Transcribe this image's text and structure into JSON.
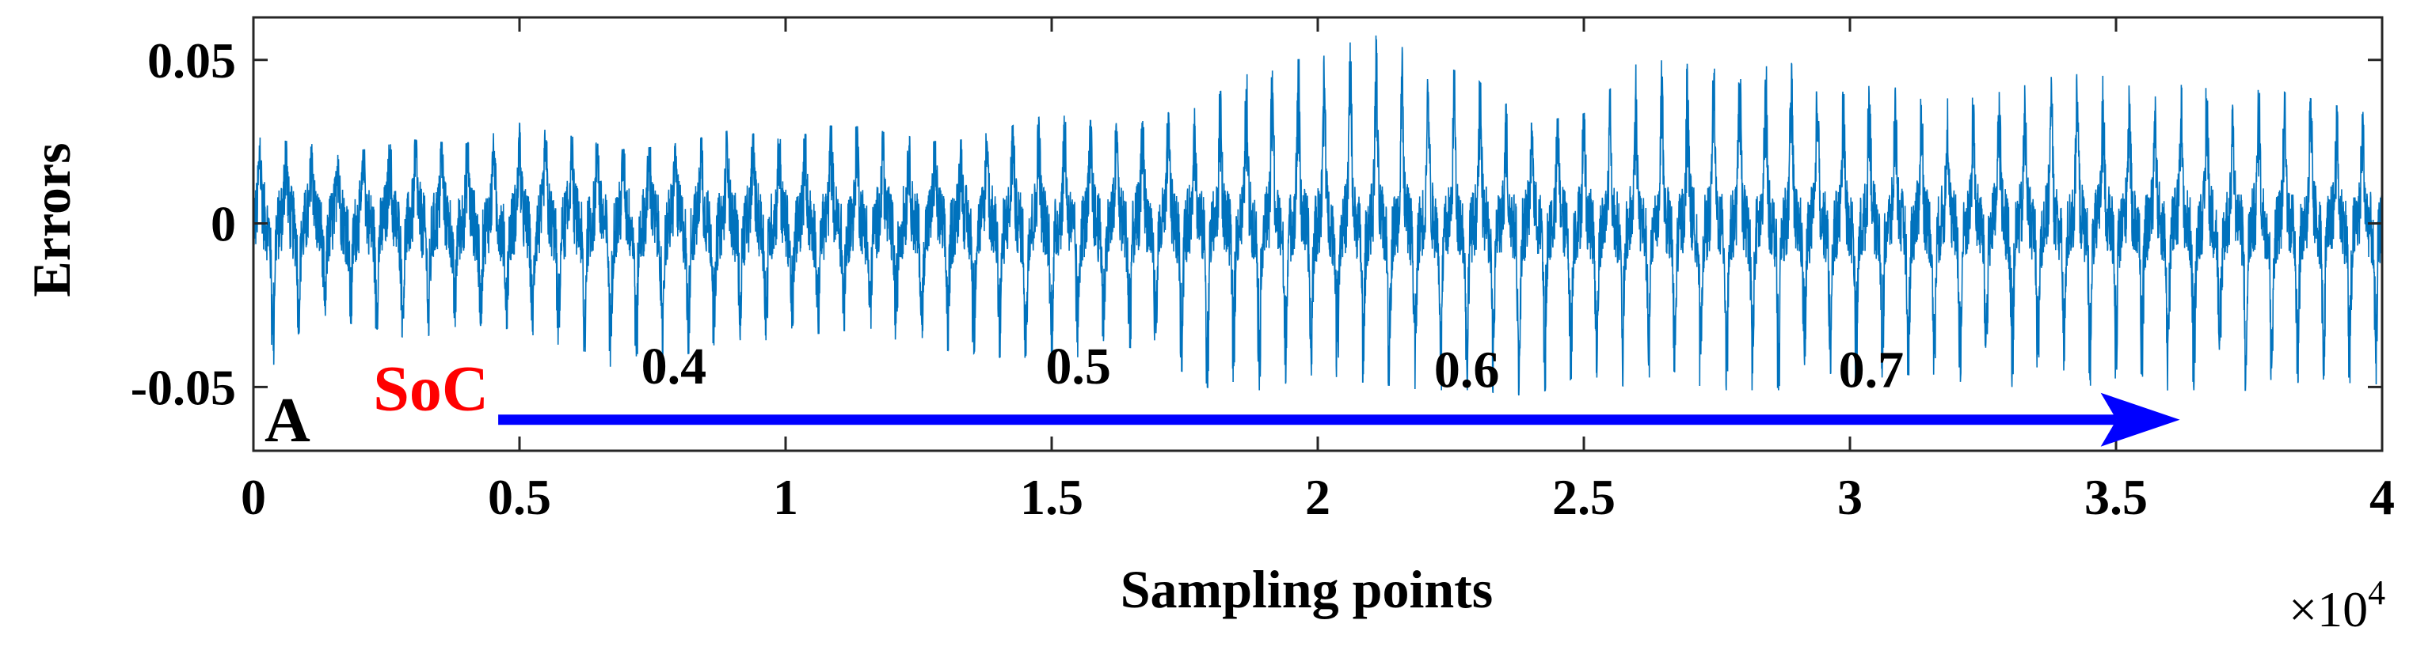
{
  "chart_data": {
    "type": "line",
    "xlabel": "Sampling points",
    "ylabel": "Errors",
    "x_multiplier_label": "×10",
    "x_multiplier_exponent": "4",
    "xlim": [
      0,
      4
    ],
    "ylim": [
      -0.0695,
      0.063
    ],
    "x_ticks": [
      0,
      0.5,
      1,
      1.5,
      2,
      2.5,
      3,
      3.5,
      4
    ],
    "x_tick_labels": [
      "0",
      "0.5",
      "1",
      "1.5",
      "2",
      "2.5",
      "3",
      "3.5",
      "4"
    ],
    "y_ticks": [
      0.05,
      0,
      -0.05
    ],
    "y_tick_labels": [
      "0.05",
      "0",
      "-0.05"
    ],
    "grid": false,
    "series": [
      {
        "color": "#0072BD",
        "x": [
          0,
          0.1,
          0.2,
          0.3,
          0.4,
          0.5,
          0.6,
          0.7,
          0.8,
          0.9,
          1.0,
          1.1,
          1.2,
          1.3,
          1.4,
          1.5,
          1.6,
          1.7,
          1.8,
          1.9,
          2.0,
          2.1,
          2.2,
          2.3,
          2.4,
          2.5,
          2.6,
          2.7,
          2.8,
          2.9,
          3.0,
          3.1,
          3.2,
          3.3,
          3.4,
          3.5,
          3.6,
          3.7,
          3.8,
          3.9,
          4.0
        ],
        "upper": [
          0.026,
          0.024,
          0.022,
          0.025,
          0.024,
          0.03,
          0.026,
          0.022,
          0.024,
          0.028,
          0.025,
          0.03,
          0.027,
          0.024,
          0.028,
          0.033,
          0.03,
          0.032,
          0.038,
          0.048,
          0.05,
          0.057,
          0.05,
          0.043,
          0.03,
          0.033,
          0.048,
          0.05,
          0.049,
          0.048,
          0.045,
          0.04,
          0.037,
          0.04,
          0.045,
          0.044,
          0.042,
          0.04,
          0.04,
          0.036,
          0.032
        ],
        "lower": [
          -0.05,
          -0.03,
          -0.03,
          -0.035,
          -0.03,
          -0.032,
          -0.038,
          -0.045,
          -0.04,
          -0.035,
          -0.035,
          -0.032,
          -0.035,
          -0.038,
          -0.04,
          -0.045,
          -0.035,
          -0.04,
          -0.05,
          -0.05,
          -0.045,
          -0.048,
          -0.05,
          -0.05,
          -0.052,
          -0.045,
          -0.05,
          -0.05,
          -0.05,
          -0.05,
          -0.048,
          -0.045,
          -0.05,
          -0.05,
          -0.045,
          -0.052,
          -0.05,
          -0.05,
          -0.05,
          -0.05,
          -0.048
        ]
      }
    ],
    "annotations": {
      "panel_label": "A",
      "soc_label": "SoC",
      "soc_color": "#FF0000",
      "arrow_color": "#0000FF",
      "arrow_x_start": 0.46,
      "arrow_x_end": 3.62,
      "arrow_y": -0.06,
      "soc_values": [
        {
          "text": "0.4",
          "x": 0.79,
          "y": -0.049
        },
        {
          "text": "0.5",
          "x": 1.55,
          "y": -0.049
        },
        {
          "text": "0.6",
          "x": 2.28,
          "y": -0.05
        },
        {
          "text": "0.7",
          "x": 3.04,
          "y": -0.05
        }
      ]
    }
  }
}
